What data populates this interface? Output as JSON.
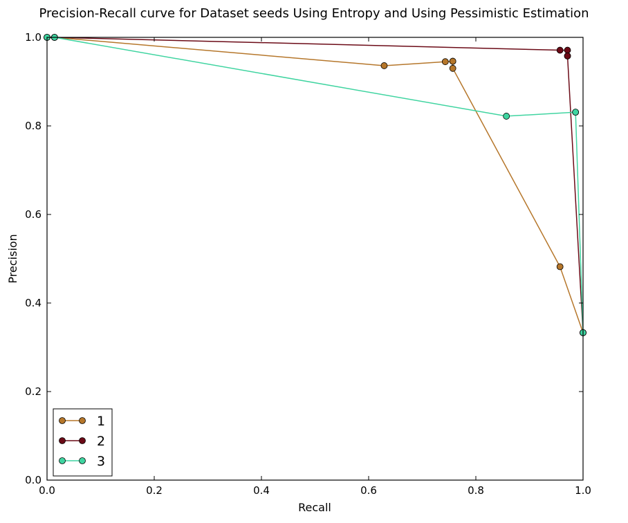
{
  "chart_data": {
    "type": "line",
    "title": "Precision-Recall curve for Dataset seeds Using Entropy and Using Pessimistic Estimation",
    "xlabel": "Recall",
    "ylabel": "Precision",
    "xlim": [
      0.0,
      1.0
    ],
    "ylim": [
      0.0,
      1.0
    ],
    "x_ticks": [
      "0.0",
      "0.2",
      "0.4",
      "0.6",
      "0.8",
      "1.0"
    ],
    "y_ticks": [
      "0.0",
      "0.2",
      "0.4",
      "0.6",
      "0.8",
      "1.0"
    ],
    "grid": false,
    "legend_position": "lower-left",
    "series": [
      {
        "name": "1",
        "color": "#b5762a",
        "points": [
          [
            0.0,
            1.0
          ],
          [
            0.014,
            1.0
          ],
          [
            0.629,
            0.936
          ],
          [
            0.743,
            0.945
          ],
          [
            0.757,
            0.946
          ],
          [
            0.757,
            0.946
          ],
          [
            0.757,
            0.93
          ],
          [
            0.957,
            0.482
          ],
          [
            1.0,
            0.333
          ]
        ]
      },
      {
        "name": "2",
        "color": "#6b0a16",
        "points": [
          [
            0.0,
            1.0
          ],
          [
            0.014,
            1.0
          ],
          [
            0.957,
            0.971
          ],
          [
            0.971,
            0.971
          ],
          [
            0.971,
            0.958
          ],
          [
            0.971,
            0.958
          ],
          [
            1.0,
            0.333
          ]
        ]
      },
      {
        "name": "3",
        "color": "#3fd4a0",
        "points": [
          [
            0.0,
            1.0
          ],
          [
            0.014,
            1.0
          ],
          [
            0.857,
            0.822
          ],
          [
            0.986,
            0.831
          ],
          [
            0.986,
            0.831
          ],
          [
            1.0,
            0.333
          ]
        ]
      }
    ]
  }
}
